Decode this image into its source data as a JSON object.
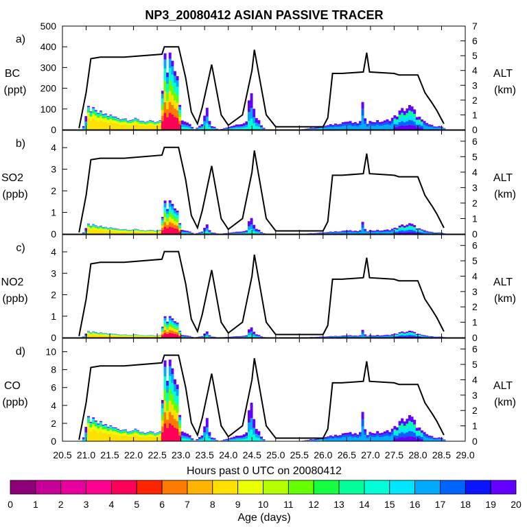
{
  "chart_data": {
    "type": "stacked-bar-with-line",
    "title": "NP3_20080412 ASIAN PASSIVE TRACER",
    "xlabel": "Hours past 0 UTC on 20080412",
    "x_ticks": [
      "20.5",
      "21.0",
      "21.5",
      "22.0",
      "22.5",
      "23.0",
      "23.5",
      "24.0",
      "24.5",
      "25.0",
      "25.5",
      "26.0",
      "26.5",
      "27.0",
      "27.5",
      "28.0",
      "28.5",
      "29.0"
    ],
    "xlim": [
      20.5,
      29.0
    ],
    "alt_label": "ALT",
    "alt_unit": "(km)",
    "altitude_km": [
      [
        20.85,
        0.1
      ],
      [
        21.0,
        2.5
      ],
      [
        21.1,
        4.8
      ],
      [
        21.3,
        4.9
      ],
      [
        21.8,
        4.9
      ],
      [
        22.6,
        5.1
      ],
      [
        22.65,
        5.6
      ],
      [
        22.95,
        5.6
      ],
      [
        23.1,
        3.5
      ],
      [
        23.22,
        1.2
      ],
      [
        23.35,
        0.4
      ],
      [
        23.45,
        1.5
      ],
      [
        23.65,
        4.4
      ],
      [
        23.85,
        1.0
      ],
      [
        24.0,
        0.3
      ],
      [
        24.3,
        1.0
      ],
      [
        24.5,
        4.0
      ],
      [
        24.55,
        5.4
      ],
      [
        24.8,
        1.0
      ],
      [
        25.0,
        0.2
      ],
      [
        26.0,
        0.2
      ],
      [
        26.1,
        0.8
      ],
      [
        26.2,
        3.8
      ],
      [
        26.4,
        3.8
      ],
      [
        26.85,
        3.9
      ],
      [
        26.92,
        5.2
      ],
      [
        26.98,
        3.9
      ],
      [
        27.5,
        3.8
      ],
      [
        27.6,
        3.7
      ],
      [
        28.0,
        3.7
      ],
      [
        28.15,
        2.5
      ],
      [
        28.3,
        1.8
      ],
      [
        28.4,
        1.3
      ],
      [
        28.55,
        0.4
      ]
    ],
    "panels": [
      {
        "label": "a)",
        "species": "BC",
        "unit": "(ppt)",
        "ylim": [
          0,
          500
        ],
        "yticks": [
          "0",
          "100",
          "200",
          "300",
          "400",
          "500"
        ],
        "alt_ticks": [
          "0",
          "1",
          "2",
          "3",
          "4",
          "5",
          "6",
          "7"
        ],
        "alt_max": 7,
        "peak_scale": 1.0
      },
      {
        "label": "b)",
        "species": "SO2",
        "unit": "(ppb)",
        "ylim": [
          0,
          4.8
        ],
        "yticks": [
          "0",
          "1",
          "2",
          "3",
          "4"
        ],
        "alt_ticks": [
          "0",
          "1",
          "2",
          "3",
          "4",
          "5",
          "6"
        ],
        "alt_max": 6.7,
        "peak_scale": 0.0042
      },
      {
        "label": "c)",
        "species": "NO2",
        "unit": "(ppb)",
        "ylim": [
          0,
          4.8
        ],
        "yticks": [
          "0",
          "1",
          "2",
          "3",
          "4"
        ],
        "alt_ticks": [
          "0",
          "1",
          "2",
          "3",
          "4",
          "5",
          "6"
        ],
        "alt_max": 6.7,
        "peak_scale": 0.0027
      },
      {
        "label": "d)",
        "species": "CO",
        "unit": "(ppb)",
        "ylim": [
          0,
          11.5
        ],
        "yticks": [
          "0",
          "2",
          "4",
          "6",
          "8",
          "10"
        ],
        "alt_ticks": [
          "0",
          "1",
          "2",
          "3",
          "4",
          "5",
          "6"
        ],
        "alt_max": 6.7,
        "peak_scale": 0.0245
      }
    ],
    "bc_profile_ppt": [
      [
        20.9,
        0
      ],
      [
        20.95,
        20
      ],
      [
        21.0,
        60
      ],
      [
        21.02,
        130
      ],
      [
        21.06,
        90
      ],
      [
        21.1,
        100
      ],
      [
        21.2,
        85
      ],
      [
        21.4,
        75
      ],
      [
        21.6,
        60
      ],
      [
        21.8,
        55
      ],
      [
        22.0,
        50
      ],
      [
        22.3,
        40
      ],
      [
        22.5,
        35
      ],
      [
        22.6,
        50
      ],
      [
        22.63,
        350
      ],
      [
        22.67,
        380
      ],
      [
        22.72,
        300
      ],
      [
        22.78,
        360
      ],
      [
        22.82,
        300
      ],
      [
        22.9,
        310
      ],
      [
        22.95,
        200
      ],
      [
        23.0,
        80
      ],
      [
        23.05,
        30
      ],
      [
        23.1,
        50
      ],
      [
        23.2,
        20
      ],
      [
        23.3,
        0
      ],
      [
        23.45,
        30
      ],
      [
        23.55,
        120
      ],
      [
        23.58,
        60
      ],
      [
        23.65,
        20
      ],
      [
        23.8,
        0
      ],
      [
        24.4,
        40
      ],
      [
        24.45,
        210
      ],
      [
        24.5,
        150
      ],
      [
        24.6,
        60
      ],
      [
        24.7,
        20
      ],
      [
        24.8,
        0
      ],
      [
        25.5,
        0
      ],
      [
        26.1,
        20
      ],
      [
        26.3,
        30
      ],
      [
        26.5,
        40
      ],
      [
        26.7,
        30
      ],
      [
        26.8,
        40
      ],
      [
        26.85,
        150
      ],
      [
        26.9,
        30
      ],
      [
        27.0,
        40
      ],
      [
        27.3,
        40
      ],
      [
        27.5,
        60
      ],
      [
        27.7,
        100
      ],
      [
        27.85,
        110
      ],
      [
        27.95,
        80
      ],
      [
        28.1,
        40
      ],
      [
        28.3,
        20
      ],
      [
        28.5,
        15
      ],
      [
        28.6,
        0
      ]
    ],
    "colorbar": {
      "label": "Age (days)",
      "ticks": [
        "0",
        "1",
        "2",
        "3",
        "4",
        "5",
        "6",
        "7",
        "8",
        "9",
        "10",
        "11",
        "12",
        "13",
        "14",
        "15",
        "16",
        "17",
        "18",
        "19",
        "20"
      ],
      "colors": [
        "#8e0078",
        "#c8009a",
        "#e8009e",
        "#ff0090",
        "#ff0058",
        "#ff2400",
        "#ff7a00",
        "#ffb400",
        "#ffe000",
        "#eaff00",
        "#b4ff00",
        "#64ff00",
        "#14ff40",
        "#00ff96",
        "#00ffd8",
        "#00e6ff",
        "#00aaff",
        "#0064ff",
        "#0a14ff",
        "#6400ff"
      ]
    }
  }
}
